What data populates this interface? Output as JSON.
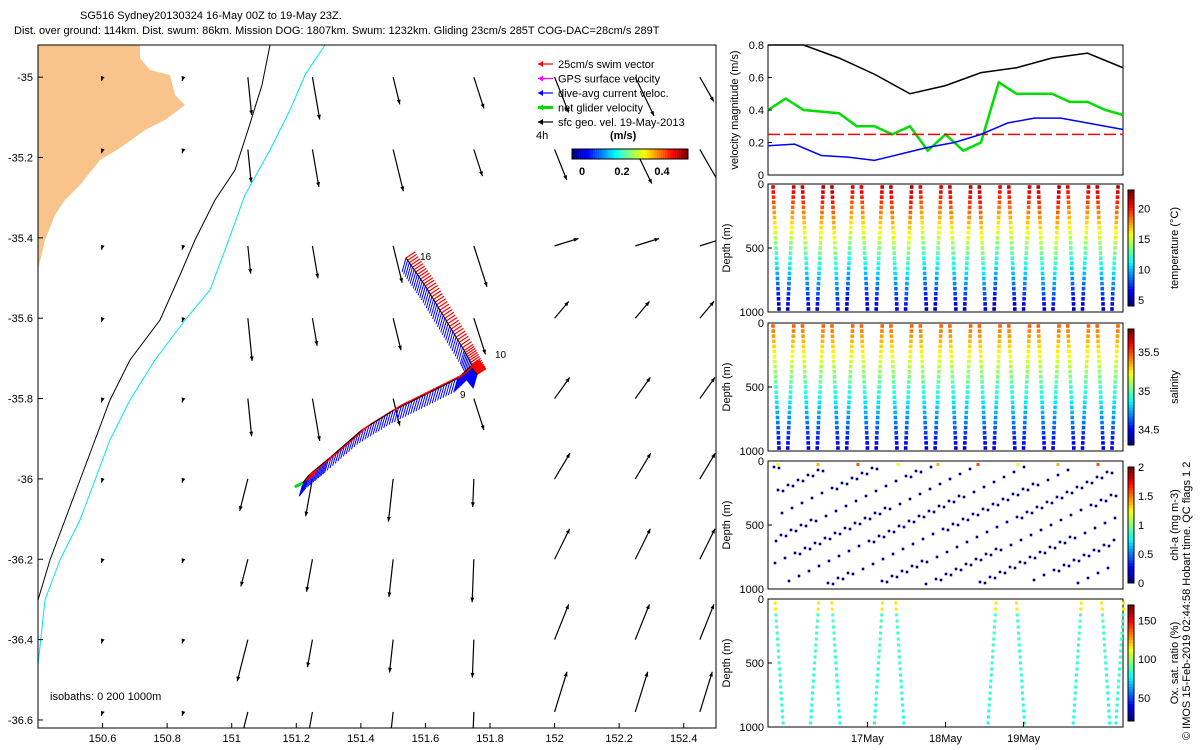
{
  "header": {
    "line1": "SG516 Sydney20130324 16-May 00Z to 19-May 23Z.",
    "line2": "Dist. over ground: 114km. Dist. swum: 86km. Mission DOG: 1807km. Swum: 1232km. Gliding 23cm/s 285T COG-DAC=28cm/s 289T"
  },
  "side_credit": "© IMOS 15-Feb-2019 02:44:58 Hobart time. QC flags 1  2",
  "colors": {
    "land": "#f9c38c",
    "isobath_200": "#000000",
    "isobath_1000": "#00e5ee",
    "swim": "#ff0000",
    "gps": "#ff00ff",
    "dac": "#0000ff",
    "net": "#00dd00",
    "geo": "#000000"
  },
  "map": {
    "legend": {
      "items": [
        {
          "label": "25cm/s swim vector",
          "color": "#ff0000"
        },
        {
          "label": "GPS surface velocity",
          "color": "#ff00ff"
        },
        {
          "label": "dive-avg current veloc.",
          "color": "#0000ff"
        },
        {
          "label": "net glider velocity",
          "color": "#00dd00"
        },
        {
          "label": "sfc geo. vel. 19-May-2013",
          "color": "#000000"
        }
      ],
      "note_4h": "4h",
      "colorbar_label": "(m/s)",
      "colorbar_ticks": [
        "0",
        "0.2",
        "0.4"
      ]
    },
    "isobaths_label": "isobaths: 0   200  1000m",
    "dive_labels": [
      "16",
      "10",
      "9"
    ]
  },
  "chart_data": [
    {
      "type": "scatter",
      "title": "map",
      "xlim": [
        150.4,
        152.5
      ],
      "ylim": [
        -36.62,
        -34.92
      ],
      "xticks": [
        150.6,
        150.8,
        151,
        151.2,
        151.4,
        151.6,
        151.8,
        152,
        152.2,
        152.4
      ],
      "xtick_labels": [
        "150.6",
        "150.8",
        "151",
        "151.2",
        "151.4",
        "151.6",
        "151.8",
        "152",
        "152.2",
        "152.4"
      ],
      "yticks": [
        -35,
        -35.2,
        -35.4,
        -35.6,
        -35.8,
        -36,
        -36.2,
        -36.4,
        -36.6
      ],
      "ytick_labels": [
        "-35",
        "-35.2",
        "-35.4",
        "-35.6",
        "-35.8",
        "-36",
        "-36.2",
        "-36.4",
        "-36.6"
      ],
      "glider_track": {
        "lon": [
          151.54,
          151.6,
          151.66,
          151.72,
          151.76,
          151.74,
          151.7,
          151.6,
          151.5,
          151.4,
          151.3,
          151.24,
          151.22
        ],
        "lat": [
          -35.45,
          -35.52,
          -35.6,
          -35.68,
          -35.74,
          -35.72,
          -35.75,
          -35.79,
          -35.83,
          -35.88,
          -35.95,
          -35.99,
          -36.01
        ]
      },
      "geo_vectors_lon": [
        151.0,
        151.25,
        151.5,
        151.75,
        152.0,
        152.25,
        152.5
      ],
      "geo_vectors_lat": [
        -35.0,
        -35.2,
        -35.4,
        -35.6,
        -35.8,
        -36.0,
        -36.2,
        -36.4,
        -36.6
      ]
    },
    {
      "type": "line",
      "title": "velocity",
      "ylabel": "velocity magnitude (m/s)",
      "xlim": [
        0,
        4
      ],
      "ylim": [
        0,
        0.8
      ],
      "yticks": [
        0,
        0.2,
        0.4,
        0.6,
        0.8
      ],
      "ytick_labels": [
        "0",
        "0.2",
        "0.4",
        "0.6",
        "0.8"
      ],
      "series": [
        {
          "color": "#000000",
          "x": [
            0,
            0.4,
            0.8,
            1.2,
            1.6,
            2.0,
            2.4,
            2.8,
            3.2,
            3.6,
            4.0
          ],
          "y": [
            0.83,
            0.8,
            0.72,
            0.62,
            0.5,
            0.55,
            0.63,
            0.66,
            0.72,
            0.75,
            0.66
          ]
        },
        {
          "color": "#00dd00",
          "x": [
            0,
            0.2,
            0.4,
            0.8,
            1.0,
            1.2,
            1.4,
            1.6,
            1.8,
            2.0,
            2.2,
            2.4,
            2.6,
            2.8,
            3.0,
            3.2,
            3.4,
            3.6,
            3.8,
            4.0
          ],
          "y": [
            0.4,
            0.47,
            0.4,
            0.38,
            0.3,
            0.3,
            0.25,
            0.3,
            0.15,
            0.25,
            0.15,
            0.2,
            0.57,
            0.5,
            0.5,
            0.5,
            0.45,
            0.45,
            0.4,
            0.37
          ]
        },
        {
          "color": "#ff0000",
          "dash": true,
          "x": [
            0,
            4
          ],
          "y": [
            0.25,
            0.25
          ]
        },
        {
          "color": "#0000ff",
          "x": [
            0,
            0.3,
            0.6,
            0.9,
            1.2,
            1.5,
            1.8,
            2.1,
            2.4,
            2.7,
            3.0,
            3.3,
            3.6,
            3.9,
            4.0
          ],
          "y": [
            0.18,
            0.19,
            0.12,
            0.11,
            0.09,
            0.13,
            0.17,
            0.2,
            0.25,
            0.32,
            0.35,
            0.35,
            0.32,
            0.29,
            0.28
          ]
        }
      ]
    },
    {
      "type": "scatter",
      "title": "temperature",
      "colorbar_label": "temperature (°C)",
      "ylabel": "Depth (m)",
      "ylim": [
        1000,
        0
      ],
      "yticks": [
        "0",
        "500",
        "1000"
      ],
      "cbar_ticks": [
        "5",
        "10",
        "15",
        "20"
      ],
      "cbar_range": [
        4,
        23
      ],
      "profiles": 24
    },
    {
      "type": "scatter",
      "title": "salinity",
      "colorbar_label": "salinity",
      "ylabel": "Depth (m)",
      "ylim": [
        1000,
        0
      ],
      "yticks": [
        "0",
        "500",
        "1000"
      ],
      "cbar_ticks": [
        "34.5",
        "35",
        "35.5"
      ],
      "cbar_range": [
        34.3,
        35.8
      ],
      "profiles": 24
    },
    {
      "type": "scatter",
      "title": "chl-a",
      "colorbar_label": "chl-a (mg m-3)",
      "ylabel": "Depth (m)",
      "ylim": [
        1000,
        0
      ],
      "yticks": [
        "0",
        "500",
        "1000"
      ],
      "cbar_ticks": [
        "0",
        "0.5",
        "1",
        "1.5",
        "2"
      ],
      "cbar_range": [
        0,
        2
      ],
      "profiles": 24
    },
    {
      "type": "scatter",
      "title": "oxygen",
      "colorbar_label": "Ox. sat. ratio (%)",
      "ylabel": "Depth (m)",
      "ylim": [
        1000,
        0
      ],
      "yticks": [
        "0",
        "500",
        "1000"
      ],
      "cbar_ticks": [
        "50",
        "100",
        "150"
      ],
      "cbar_range": [
        20,
        170
      ],
      "profiles": 10,
      "xtick_labels": [
        "17May",
        "18May",
        "19May"
      ]
    }
  ]
}
